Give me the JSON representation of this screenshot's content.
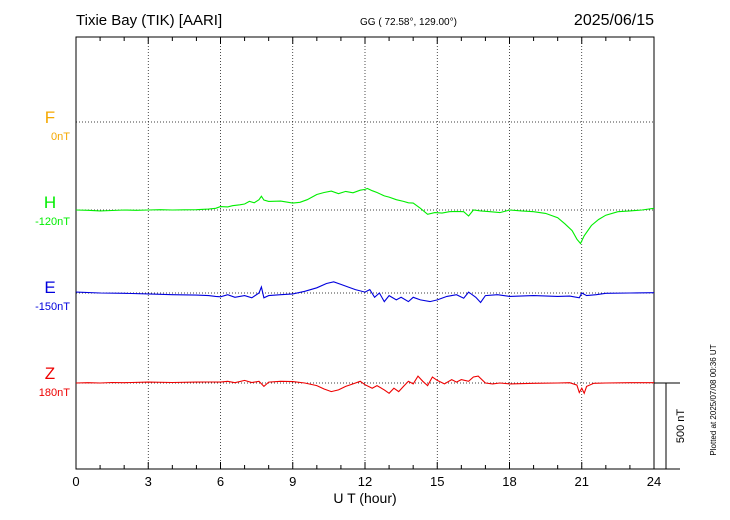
{
  "header": {
    "station": "Tixie Bay (TIK)  [AARI]",
    "coords": "GG ( 72.58°, 129.00°)",
    "date": "2025/06/15"
  },
  "footer": {
    "plotted": "Plotted at 2025/07/08 00:36 UT"
  },
  "chart_data": {
    "type": "line",
    "xlabel": "U T (hour)",
    "xlim": [
      0,
      24
    ],
    "xticks": [
      0,
      3,
      6,
      9,
      12,
      15,
      18,
      21,
      24
    ],
    "scale_bar_label": "500 nT",
    "scale_bar_nT": 500,
    "series": [
      {
        "name": "F",
        "baseline_label": "0nT",
        "color": "#f5a800",
        "points": []
      },
      {
        "name": "H",
        "baseline_label": "-120nT",
        "color": "#00ee00",
        "points": [
          [
            0,
            -120
          ],
          [
            0.5,
            -122
          ],
          [
            1,
            -125
          ],
          [
            1.5,
            -123
          ],
          [
            2,
            -120
          ],
          [
            2.5,
            -122
          ],
          [
            3,
            -120
          ],
          [
            3.5,
            -118
          ],
          [
            4,
            -120
          ],
          [
            4.5,
            -119
          ],
          [
            5,
            -118
          ],
          [
            5.5,
            -115
          ],
          [
            5.8,
            -110
          ],
          [
            6,
            -100
          ],
          [
            6.3,
            -102
          ],
          [
            6.5,
            -95
          ],
          [
            6.8,
            -90
          ],
          [
            7,
            -85
          ],
          [
            7.2,
            -70
          ],
          [
            7.4,
            -78
          ],
          [
            7.6,
            -60
          ],
          [
            7.7,
            -40
          ],
          [
            7.8,
            -62
          ],
          [
            8,
            -70
          ],
          [
            8.5,
            -68
          ],
          [
            9,
            -80
          ],
          [
            9.3,
            -75
          ],
          [
            9.6,
            -60
          ],
          [
            9.8,
            -45
          ],
          [
            10,
            -30
          ],
          [
            10.3,
            -18
          ],
          [
            10.6,
            -10
          ],
          [
            10.9,
            -25
          ],
          [
            11.2,
            -12
          ],
          [
            11.5,
            -20
          ],
          [
            11.8,
            -5
          ],
          [
            12,
            0
          ],
          [
            12.1,
            5
          ],
          [
            12.3,
            -8
          ],
          [
            12.5,
            -18
          ],
          [
            12.8,
            -38
          ],
          [
            13,
            -45
          ],
          [
            13.3,
            -60
          ],
          [
            13.6,
            -70
          ],
          [
            13.8,
            -78
          ],
          [
            14,
            -80
          ],
          [
            14.3,
            -110
          ],
          [
            14.6,
            -145
          ],
          [
            14.9,
            -135
          ],
          [
            15.2,
            -138
          ],
          [
            15.5,
            -130
          ],
          [
            15.8,
            -128
          ],
          [
            16.1,
            -130
          ],
          [
            16.3,
            -155
          ],
          [
            16.5,
            -120
          ],
          [
            16.8,
            -125
          ],
          [
            17.2,
            -130
          ],
          [
            17.6,
            -135
          ],
          [
            18,
            -120
          ],
          [
            18.5,
            -125
          ],
          [
            19,
            -130
          ],
          [
            19.5,
            -140
          ],
          [
            20,
            -165
          ],
          [
            20.3,
            -200
          ],
          [
            20.6,
            -240
          ],
          [
            20.8,
            -290
          ],
          [
            20.95,
            -315
          ],
          [
            21.1,
            -270
          ],
          [
            21.4,
            -210
          ],
          [
            21.7,
            -175
          ],
          [
            22,
            -150
          ],
          [
            22.5,
            -130
          ],
          [
            23,
            -125
          ],
          [
            23.5,
            -120
          ],
          [
            24,
            -110
          ]
        ]
      },
      {
        "name": "E",
        "baseline_label": "-150nT",
        "color": "#0000dd",
        "points": [
          [
            0,
            -145
          ],
          [
            1,
            -150
          ],
          [
            2,
            -152
          ],
          [
            3,
            -155
          ],
          [
            4,
            -160
          ],
          [
            5,
            -162
          ],
          [
            5.5,
            -165
          ],
          [
            5.8,
            -170
          ],
          [
            6,
            -172
          ],
          [
            6.3,
            -160
          ],
          [
            6.6,
            -175
          ],
          [
            7,
            -165
          ],
          [
            7.3,
            -178
          ],
          [
            7.6,
            -150
          ],
          [
            7.7,
            -115
          ],
          [
            7.8,
            -178
          ],
          [
            8,
            -165
          ],
          [
            8.5,
            -160
          ],
          [
            9,
            -155
          ],
          [
            9.5,
            -140
          ],
          [
            10,
            -120
          ],
          [
            10.4,
            -95
          ],
          [
            10.7,
            -85
          ],
          [
            11,
            -100
          ],
          [
            11.3,
            -115
          ],
          [
            11.6,
            -130
          ],
          [
            12,
            -145
          ],
          [
            12.2,
            -130
          ],
          [
            12.4,
            -175
          ],
          [
            12.6,
            -150
          ],
          [
            12.8,
            -200
          ],
          [
            13,
            -165
          ],
          [
            13.3,
            -190
          ],
          [
            13.5,
            -175
          ],
          [
            13.8,
            -200
          ],
          [
            14,
            -175
          ],
          [
            14.3,
            -190
          ],
          [
            14.7,
            -200
          ],
          [
            15,
            -190
          ],
          [
            15.4,
            -170
          ],
          [
            15.8,
            -160
          ],
          [
            16.1,
            -180
          ],
          [
            16.3,
            -145
          ],
          [
            16.6,
            -175
          ],
          [
            16.8,
            -205
          ],
          [
            17,
            -165
          ],
          [
            17.5,
            -160
          ],
          [
            18,
            -170
          ],
          [
            19,
            -165
          ],
          [
            20,
            -170
          ],
          [
            20.5,
            -168
          ],
          [
            20.9,
            -178
          ],
          [
            21,
            -150
          ],
          [
            21.2,
            -165
          ],
          [
            21.6,
            -160
          ],
          [
            22,
            -152
          ],
          [
            23,
            -150
          ],
          [
            24,
            -148
          ]
        ]
      },
      {
        "name": "Z",
        "baseline_label": "180nT",
        "color": "#ee0000",
        "points": [
          [
            0,
            180
          ],
          [
            0.5,
            182
          ],
          [
            1,
            180
          ],
          [
            1.5,
            183
          ],
          [
            2,
            182
          ],
          [
            3,
            185
          ],
          [
            4,
            183
          ],
          [
            5,
            185
          ],
          [
            5.5,
            186
          ],
          [
            6,
            185
          ],
          [
            6.3,
            190
          ],
          [
            6.6,
            182
          ],
          [
            7,
            195
          ],
          [
            7.3,
            183
          ],
          [
            7.6,
            190
          ],
          [
            7.8,
            160
          ],
          [
            8,
            185
          ],
          [
            8.5,
            190
          ],
          [
            9,
            188
          ],
          [
            9.5,
            180
          ],
          [
            10,
            165
          ],
          [
            10.3,
            145
          ],
          [
            10.6,
            130
          ],
          [
            10.9,
            140
          ],
          [
            11.2,
            160
          ],
          [
            11.5,
            175
          ],
          [
            11.8,
            190
          ],
          [
            12,
            170
          ],
          [
            12.3,
            150
          ],
          [
            12.5,
            165
          ],
          [
            12.8,
            140
          ],
          [
            13,
            120
          ],
          [
            13.2,
            150
          ],
          [
            13.4,
            130
          ],
          [
            13.6,
            160
          ],
          [
            13.8,
            190
          ],
          [
            14,
            175
          ],
          [
            14.2,
            220
          ],
          [
            14.4,
            190
          ],
          [
            14.6,
            165
          ],
          [
            14.8,
            215
          ],
          [
            15,
            195
          ],
          [
            15.3,
            175
          ],
          [
            15.6,
            200
          ],
          [
            15.8,
            185
          ],
          [
            16,
            200
          ],
          [
            16.3,
            190
          ],
          [
            16.5,
            215
          ],
          [
            16.7,
            220
          ],
          [
            17,
            180
          ],
          [
            17.3,
            175
          ],
          [
            17.6,
            180
          ],
          [
            18,
            175
          ],
          [
            19,
            178
          ],
          [
            20,
            180
          ],
          [
            20.5,
            182
          ],
          [
            20.8,
            168
          ],
          [
            20.9,
            125
          ],
          [
            21.0,
            150
          ],
          [
            21.1,
            120
          ],
          [
            21.2,
            160
          ],
          [
            21.5,
            178
          ],
          [
            22,
            180
          ],
          [
            23,
            182
          ],
          [
            24,
            182
          ]
        ]
      }
    ]
  }
}
